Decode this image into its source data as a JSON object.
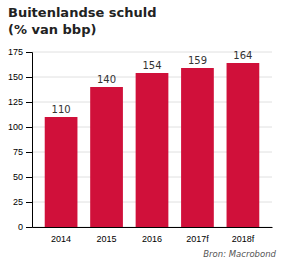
{
  "chart_data": {
    "type": "bar",
    "title": "Buitenlandse schuld",
    "subtitle": "(% van bbp)",
    "annotations": [
      "Bron: Macrobond"
    ],
    "categories": [
      "2014",
      "2015",
      "2016",
      "2017f",
      "2018f"
    ],
    "values": [
      110,
      140,
      154,
      159,
      164
    ],
    "color": "#d0103a",
    "ylim": [
      0,
      175
    ],
    "yticks": [
      0,
      25,
      50,
      75,
      100,
      125,
      150,
      175
    ],
    "grid": true,
    "data_labels": true
  }
}
